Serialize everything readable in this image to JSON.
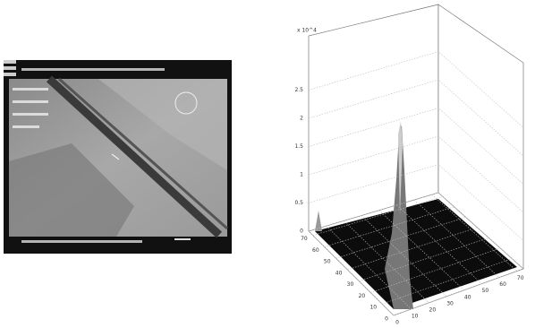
{
  "plot": {
    "z_exponent": "x 10^4",
    "z_ticks": [
      0,
      0.5,
      1,
      1.5,
      2,
      2.5
    ],
    "x_ticks": [
      0,
      10,
      20,
      30,
      40,
      50,
      60,
      70
    ],
    "y_ticks": [
      0,
      10,
      20,
      30,
      40,
      50,
      60,
      70
    ]
  }
}
